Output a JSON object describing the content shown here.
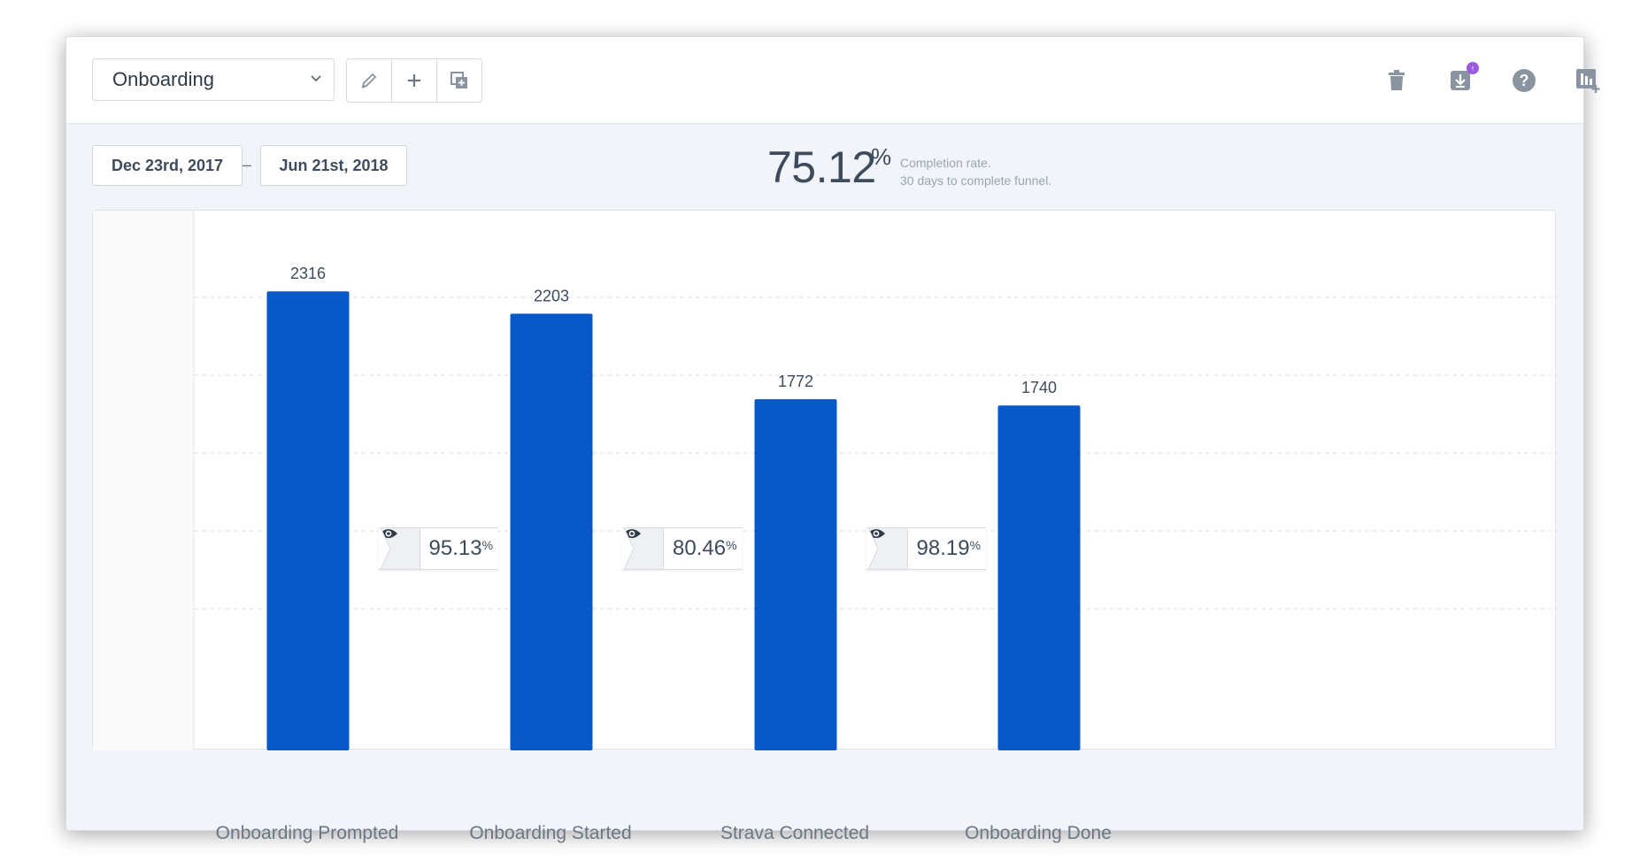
{
  "toolbar": {
    "funnel_name": "Onboarding",
    "actions": [
      "edit-icon",
      "plus-icon",
      "duplicate-icon"
    ],
    "right_actions": [
      "trash-icon",
      "download-icon",
      "help-icon",
      "add-chart-icon"
    ],
    "download_badge": "↑"
  },
  "date_range": {
    "start": "Dec 23rd, 2017",
    "separator": "–",
    "end": "Jun 21st, 2018"
  },
  "summary": {
    "completion_rate": "75.12",
    "percent_sign": "%",
    "line1": "Completion rate.",
    "line2": "30 days to complete funnel."
  },
  "chart_data": {
    "type": "bar",
    "categories": [
      "Onboarding Prompted",
      "Onboarding Started",
      "Strava Connected",
      "Onboarding Done"
    ],
    "values": [
      2316,
      2203,
      1772,
      1740
    ],
    "conversions": [
      "95.13",
      "80.46",
      "98.19"
    ],
    "title": "",
    "xlabel": "",
    "ylabel": "",
    "ylim": [
      0,
      2500
    ],
    "grid": true,
    "bar_color": "#0858c8"
  },
  "colors": {
    "bar": "#0858c8",
    "accent_badge": "#9c59e0"
  }
}
